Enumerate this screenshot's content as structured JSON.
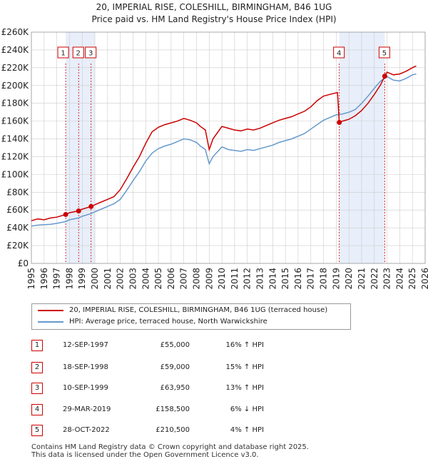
{
  "title_line1": "20, IMPERIAL RISE, COLESHILL, BIRMINGHAM, B46 1UG",
  "title_line2": "Price paid vs. HM Land Registry's House Price Index (HPI)",
  "colors": {
    "red": "#cc0000",
    "blue": "#6699cc",
    "shade": "#e8eefa",
    "grid": "#cccccc"
  },
  "chart_data": {
    "type": "line",
    "title": "Price paid vs. HM Land Registry's House Price Index (HPI)",
    "xlim": [
      1995,
      2026
    ],
    "ylim": [
      0,
      260000
    ],
    "y_ticks": [
      0,
      20000,
      40000,
      60000,
      80000,
      100000,
      120000,
      140000,
      160000,
      180000,
      200000,
      220000,
      240000,
      260000
    ],
    "y_tick_labels": [
      "£0",
      "£20K",
      "£40K",
      "£60K",
      "£80K",
      "£100K",
      "£120K",
      "£140K",
      "£160K",
      "£180K",
      "£200K",
      "£220K",
      "£240K",
      "£260K"
    ],
    "x_ticks": [
      1995,
      1996,
      1997,
      1998,
      1999,
      2000,
      2001,
      2002,
      2003,
      2004,
      2005,
      2006,
      2007,
      2008,
      2009,
      2010,
      2011,
      2012,
      2013,
      2014,
      2015,
      2016,
      2017,
      2018,
      2019,
      2020,
      2021,
      2022,
      2023,
      2024,
      2025,
      2026
    ],
    "shaded_ranges": [
      [
        1997.7,
        2000.0
      ],
      [
        2019.24,
        2022.82
      ]
    ],
    "series": [
      {
        "name": "20, IMPERIAL RISE, COLESHILL, BIRMINGHAM, B46 1UG (terraced house)",
        "color": "#cc0000",
        "x": [
          1995,
          1995.5,
          1996,
          1996.5,
          1997,
          1997.7,
          1998,
          1998.7,
          1999,
          1999.7,
          2000,
          2000.5,
          2001,
          2001.5,
          2002,
          2002.5,
          2003,
          2003.5,
          2004,
          2004.5,
          2005,
          2005.5,
          2006,
          2006.5,
          2007,
          2007.5,
          2008,
          2008.3,
          2008.7,
          2009,
          2009.3,
          2010,
          2010.5,
          2011,
          2011.5,
          2012,
          2012.5,
          2013,
          2013.5,
          2014,
          2014.5,
          2015,
          2015.5,
          2016,
          2016.5,
          2017,
          2017.5,
          2018,
          2018.5,
          2019.1,
          2019.24,
          2019.5,
          2020,
          2020.5,
          2021,
          2021.5,
          2022,
          2022.5,
          2022.82,
          2023,
          2023.5,
          2024,
          2024.5,
          2025,
          2025.3
        ],
        "y": [
          48000,
          50000,
          49000,
          51000,
          52000,
          55000,
          57000,
          59000,
          61000,
          63950,
          66000,
          69000,
          72000,
          75000,
          83000,
          95000,
          108000,
          120000,
          135000,
          148000,
          153000,
          156000,
          158000,
          160000,
          163000,
          161000,
          158000,
          154000,
          150000,
          128000,
          140000,
          154000,
          152000,
          150000,
          149000,
          151000,
          150000,
          152000,
          155000,
          158000,
          161000,
          163000,
          165000,
          168000,
          171000,
          176000,
          183000,
          188000,
          190000,
          192000,
          158500,
          160000,
          162000,
          166000,
          172000,
          180000,
          190000,
          201000,
          210500,
          215000,
          212000,
          213000,
          216000,
          220000,
          222000
        ]
      },
      {
        "name": "HPI: Average price, terraced house, North Warwickshire",
        "color": "#6699cc",
        "x": [
          1995,
          1995.5,
          1996,
          1996.5,
          1997,
          1997.7,
          1998,
          1998.7,
          1999,
          1999.7,
          2000,
          2000.5,
          2001,
          2001.5,
          2002,
          2002.5,
          2003,
          2003.5,
          2004,
          2004.5,
          2005,
          2005.5,
          2006,
          2006.5,
          2007,
          2007.5,
          2008,
          2008.3,
          2008.7,
          2009,
          2009.3,
          2010,
          2010.5,
          2011,
          2011.5,
          2012,
          2012.5,
          2013,
          2013.5,
          2014,
          2014.5,
          2015,
          2015.5,
          2016,
          2016.5,
          2017,
          2017.5,
          2018,
          2018.5,
          2019,
          2019.5,
          2020,
          2020.5,
          2021,
          2021.5,
          2022,
          2022.5,
          2023,
          2023.5,
          2024,
          2024.5,
          2025,
          2025.3
        ],
        "y": [
          42000,
          43000,
          43500,
          44000,
          45000,
          47000,
          49000,
          51000,
          53000,
          56000,
          58000,
          61000,
          64000,
          67000,
          72000,
          82000,
          93000,
          103000,
          115000,
          124000,
          129000,
          132000,
          134000,
          137000,
          140000,
          139000,
          136000,
          132000,
          128000,
          112000,
          120000,
          131000,
          128000,
          127000,
          126000,
          128000,
          127000,
          129000,
          131000,
          133000,
          136000,
          138000,
          140000,
          143000,
          146000,
          151000,
          156000,
          161000,
          164000,
          167000,
          168000,
          170000,
          173000,
          180000,
          188000,
          197000,
          205000,
          210000,
          206000,
          205000,
          208000,
          212000,
          213000
        ]
      }
    ],
    "sales": [
      {
        "num": "1",
        "x": 1997.7,
        "y": 55000
      },
      {
        "num": "2",
        "x": 1998.72,
        "y": 59000
      },
      {
        "num": "3",
        "x": 1999.7,
        "y": 63950
      },
      {
        "num": "4",
        "x": 2019.24,
        "y": 158500
      },
      {
        "num": "5",
        "x": 2022.82,
        "y": 210500
      }
    ]
  },
  "legend": {
    "red_label": "20, IMPERIAL RISE, COLESHILL, BIRMINGHAM, B46 1UG (terraced house)",
    "blue_label": "HPI: Average price, terraced house, North Warwickshire"
  },
  "sales_table": [
    {
      "num": "1",
      "date": "12-SEP-1997",
      "price": "£55,000",
      "hpi": "16% ↑ HPI"
    },
    {
      "num": "2",
      "date": "18-SEP-1998",
      "price": "£59,000",
      "hpi": "15% ↑ HPI"
    },
    {
      "num": "3",
      "date": "10-SEP-1999",
      "price": "£63,950",
      "hpi": "13% ↑ HPI"
    },
    {
      "num": "4",
      "date": "29-MAR-2019",
      "price": "£158,500",
      "hpi": "6% ↓ HPI"
    },
    {
      "num": "5",
      "date": "28-OCT-2022",
      "price": "£210,500",
      "hpi": "4% ↑ HPI"
    }
  ],
  "footer_line1": "Contains HM Land Registry data © Crown copyright and database right 2025.",
  "footer_line2": "This data is licensed under the Open Government Licence v3.0."
}
